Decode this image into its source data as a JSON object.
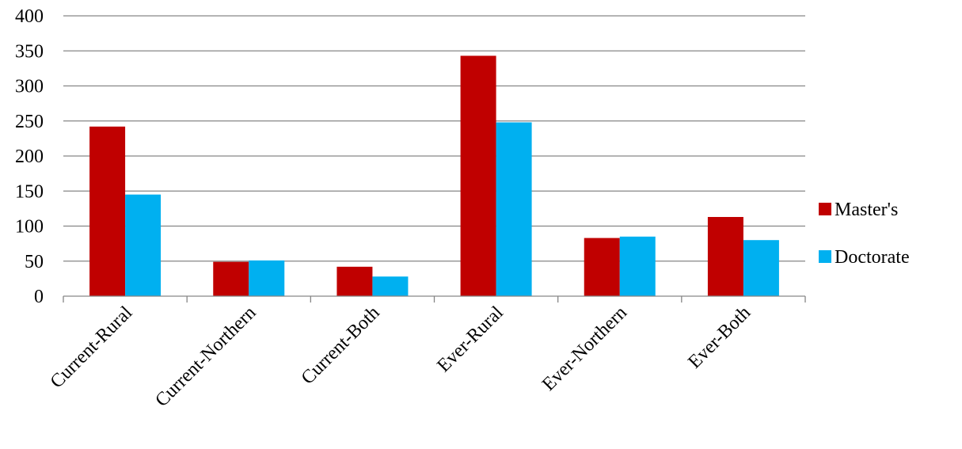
{
  "chart_data": {
    "type": "bar",
    "title": "",
    "xlabel": "",
    "ylabel": "",
    "categories": [
      "Current-Rural",
      "Current-Northern",
      "Current-Both",
      "Ever-Rural",
      "Ever-Northern",
      "Ever-Both"
    ],
    "series": [
      {
        "name": "Master's",
        "color": "#C00000",
        "values": [
          242,
          49,
          42,
          343,
          83,
          113
        ]
      },
      {
        "name": "Doctorate",
        "color": "#00B0F0",
        "values": [
          145,
          51,
          28,
          248,
          85,
          80
        ]
      }
    ],
    "ylim": [
      0,
      400
    ],
    "yticks": [
      0,
      50,
      100,
      150,
      200,
      250,
      300,
      350,
      400
    ],
    "grid": true,
    "legend_position": "right"
  }
}
